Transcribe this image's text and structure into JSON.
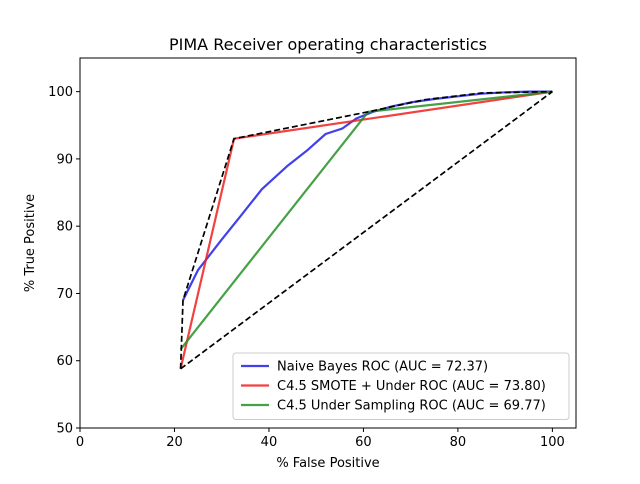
{
  "chart_data": {
    "type": "line",
    "title": "PIMA Receiver operating characteristics",
    "xlabel": "% False Positive",
    "ylabel": "% True Positive",
    "xlim": [
      0,
      105
    ],
    "ylim": [
      50,
      105
    ],
    "xticks": [
      0,
      20,
      40,
      60,
      80,
      100
    ],
    "yticks": [
      50,
      60,
      70,
      80,
      90,
      100
    ],
    "xtick_labels": [
      "0",
      "20",
      "40",
      "60",
      "80",
      "100"
    ],
    "ytick_labels": [
      "50",
      "60",
      "70",
      "80",
      "90",
      "100"
    ],
    "grid": false,
    "legend_position": "bottom-right",
    "series": [
      {
        "name": "Naive Bayes ROC (AUC = 72.37)",
        "color": "#2020e8",
        "style": "solid",
        "x": [
          21.8,
          25,
          30,
          34,
          38.5,
          44,
          48,
          52,
          55.5,
          58.5,
          62,
          66,
          70,
          75,
          80,
          85,
          90,
          95,
          100
        ],
        "y": [
          69,
          73.5,
          78,
          81.5,
          85.5,
          89,
          91.2,
          93.7,
          94.5,
          96,
          97,
          97.8,
          98.4,
          98.9,
          99.3,
          99.7,
          99.9,
          100,
          100
        ]
      },
      {
        "name": "C4.5 SMOTE + Under ROC (AUC = 73.80)",
        "color": "#f02020",
        "style": "solid",
        "x": [
          21.3,
          32.6,
          100
        ],
        "y": [
          58.8,
          93,
          100
        ]
      },
      {
        "name": "C4.5 Under Sampling ROC (AUC = 69.77)",
        "color": "#259025",
        "style": "solid",
        "x": [
          21.3,
          61,
          100
        ],
        "y": [
          61.7,
          97,
          100
        ]
      },
      {
        "name": "",
        "color": "#000000",
        "style": "dashed",
        "x": [
          21.3,
          21.8,
          32.6,
          61,
          73,
          85,
          100
        ],
        "y": [
          58.8,
          69,
          93,
          97,
          98.8,
          99.8,
          100
        ]
      },
      {
        "name": "",
        "color": "#000000",
        "style": "dashed",
        "x": [
          21.3,
          100
        ],
        "y": [
          58.8,
          100
        ]
      }
    ]
  }
}
